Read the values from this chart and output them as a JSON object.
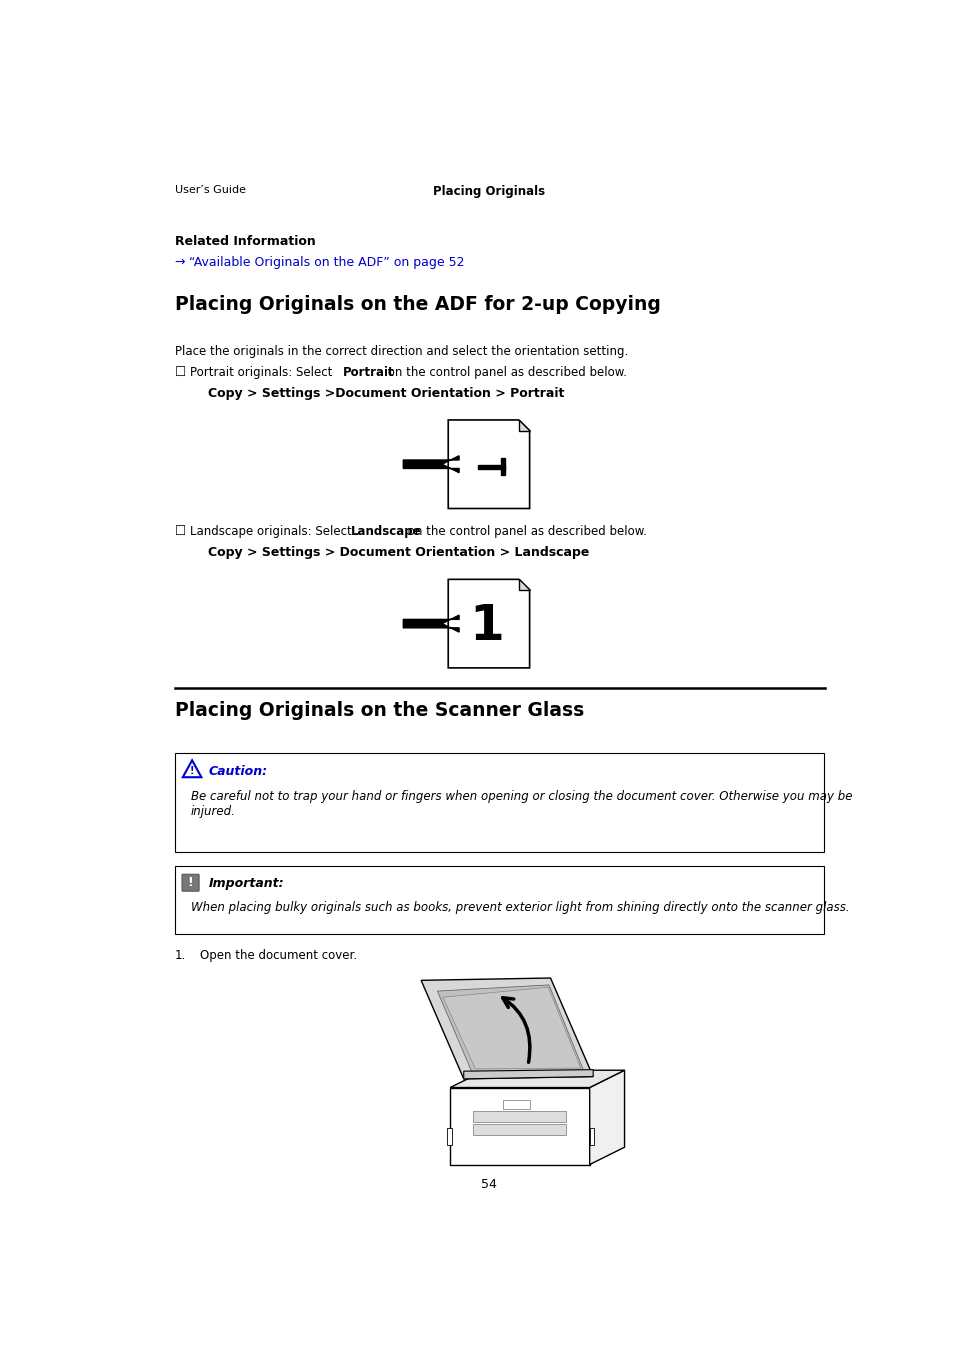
{
  "bg_color": "#ffffff",
  "page_width": 9.54,
  "page_height": 13.5,
  "dpi": 100,
  "header_text": "User’s Guide",
  "center_header": "Placing Originals",
  "related_info_label": "Related Information",
  "related_link": "→ “Available Originals on the ADF” on page 52",
  "section1_title": "Placing Originals on the ADF for 2-up Copying",
  "section1_intro": "Place the originals in the correct direction and select the orientation setting.",
  "portrait_path": "Copy > Settings >Document Orientation > Portrait",
  "landscape_path": "Copy > Settings > Document Orientation > Landscape",
  "section2_title": "Placing Originals on the Scanner Glass",
  "caution_label": "Caution:",
  "caution_text": "Be careful not to trap your hand or fingers when opening or closing the document cover. Otherwise you may be\ninjured.",
  "important_label": "Important:",
  "important_text": "When placing bulky originals such as books, prevent exterior light from shining directly onto the scanner glass.",
  "step1_text": "Open the document cover.",
  "page_num": "54",
  "link_color": "#0000cc",
  "caution_color": "#0000cc",
  "text_color": "#000000"
}
